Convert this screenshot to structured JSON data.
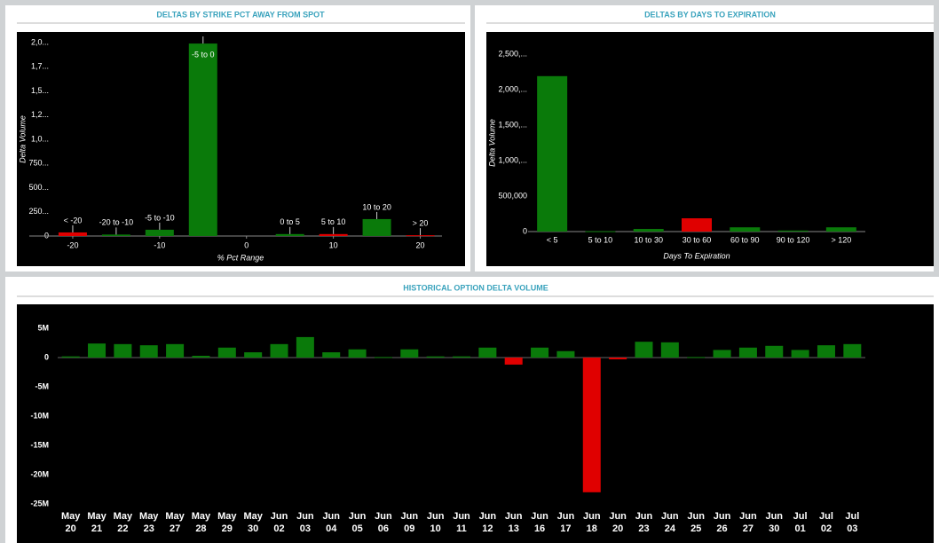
{
  "chart_data": [
    {
      "type": "bar",
      "title": "DELTAS BY STRIKE PCT AWAY FROM SPOT",
      "xlabel": "% Pct Range",
      "ylabel": "Delta Volume",
      "categories": [
        "< -20",
        "-20 to -10",
        "-5 to -10",
        "-5 to 0",
        "0 to 5",
        "5 to 10",
        "10 to 20",
        "> 20"
      ],
      "x": [
        -20,
        -15,
        -10,
        -5,
        5,
        10,
        15,
        20
      ],
      "values": [
        37000,
        15000,
        65000,
        1990000,
        20000,
        20000,
        175000,
        8000
      ],
      "colors": [
        "#e00000",
        "#0a7a0a",
        "#0a7a0a",
        "#0a7a0a",
        "#0a7a0a",
        "#e00000",
        "#0a7a0a",
        "#e00000"
      ],
      "xlim": [
        -25,
        22.5
      ],
      "xticks": [
        -20,
        -10,
        0,
        10,
        20
      ],
      "ylim": [
        0,
        2000000
      ],
      "yticks": [
        0,
        {
          "value": 250000,
          "label": "250..."
        },
        {
          "value": 500000,
          "label": "500..."
        },
        {
          "value": 750000,
          "label": "750..."
        },
        {
          "value": 1000000,
          "label": "1,0..."
        },
        {
          "value": 1250000,
          "label": "1,2..."
        },
        {
          "value": 1500000,
          "label": "1,5..."
        },
        {
          "value": 1750000,
          "label": "1,7..."
        },
        {
          "value": 2000000,
          "label": "2,0..."
        }
      ]
    },
    {
      "type": "bar",
      "title": "DELTAS BY DAYS TO EXPIRATION",
      "xlabel": "Days To Expiration",
      "ylabel": "Delta Volume",
      "categories": [
        "< 5",
        "5 to 10",
        "10 to 30",
        "30 to 60",
        "60 to 90",
        "90 to 120",
        "> 120"
      ],
      "values": [
        2190000,
        5000,
        37000,
        187000,
        60000,
        15000,
        60000
      ],
      "colors": [
        "#0a7a0a",
        "#0a7a0a",
        "#0a7a0a",
        "#e00000",
        "#0a7a0a",
        "#0a7a0a",
        "#0a7a0a"
      ],
      "ylim": [
        0,
        2700000
      ],
      "yticks": [
        0,
        {
          "value": 500000,
          "label": "500,000"
        },
        {
          "value": 1000000,
          "label": "1,000,..."
        },
        {
          "value": 1500000,
          "label": "1,500,..."
        },
        {
          "value": 2000000,
          "label": "2,000,..."
        },
        {
          "value": 2500000,
          "label": "2,500,..."
        }
      ]
    },
    {
      "type": "bar",
      "title": "HISTORICAL OPTION DELTA VOLUME",
      "categories": [
        "May 20",
        "May 21",
        "May 22",
        "May 23",
        "May 27",
        "May 28",
        "May 29",
        "May 30",
        "Jun 02",
        "Jun 03",
        "Jun 04",
        "Jun 05",
        "Jun 06",
        "Jun 09",
        "Jun 10",
        "Jun 11",
        "Jun 12",
        "Jun 13",
        "Jun 16",
        "Jun 17",
        "Jun 18",
        "Jun 20",
        "Jun 23",
        "Jun 24",
        "Jun 25",
        "Jun 26",
        "Jun 27",
        "Jun 30",
        "Jul 01",
        "Jul 02",
        "Jul 03"
      ],
      "values": [
        200000,
        2400000,
        2300000,
        2100000,
        2300000,
        300000,
        1700000,
        900000,
        2300000,
        3500000,
        900000,
        1400000,
        100000,
        1400000,
        200000,
        200000,
        1700000,
        -1200000,
        1700000,
        1100000,
        -23000000,
        -300000,
        2700000,
        2600000,
        100000,
        1300000,
        1700000,
        2000000,
        1300000,
        2100000,
        2300000
      ],
      "color": "#0a7a0a",
      "negative_color": "#e00000",
      "ylim": [
        -26000000,
        8000000
      ],
      "yticks": [
        {
          "value": 5000000,
          "label": "5M"
        },
        0,
        {
          "value": -5000000,
          "label": "-5M"
        },
        {
          "value": -10000000,
          "label": "-10M"
        },
        {
          "value": -15000000,
          "label": "-15M"
        },
        {
          "value": -20000000,
          "label": "-20M"
        },
        {
          "value": -25000000,
          "label": "-25M"
        }
      ]
    }
  ]
}
